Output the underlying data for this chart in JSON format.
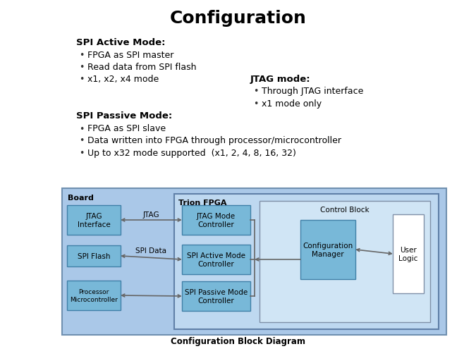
{
  "title": "Configuration",
  "bg_color": "#ffffff",
  "text_color": "#000000",
  "spi_active_header": "SPI Active Mode:",
  "spi_active_bullets": [
    "FPGA as SPI master",
    "Read data from SPI flash",
    "x1, x2, x4 mode"
  ],
  "jtag_header": "JTAG mode:",
  "jtag_bullets": [
    "Through JTAG interface",
    "x1 mode only"
  ],
  "spi_passive_header": "SPI Passive Mode:",
  "spi_passive_bullets": [
    "FPGA as SPI slave",
    "Data written into FPGA through processor/microcontroller",
    "Up to x32 mode supported  (x1, 2, 4, 8, 16, 32)"
  ],
  "diagram_caption": "Configuration Block Diagram",
  "board_bg": "#aac8e8",
  "board_border": "#7090b0",
  "trion_bg": "#bed8f0",
  "trion_border": "#6080a8",
  "ctrl_bg": "#d0e5f5",
  "ctrl_border": "#8090a8",
  "box_fill": "#78b8d8",
  "box_border": "#4080a8",
  "conf_mgr_fill": "#78b8d8",
  "user_logic_fill": "#ffffff",
  "user_logic_border": "#8090a8",
  "arrow_color": "#666666"
}
